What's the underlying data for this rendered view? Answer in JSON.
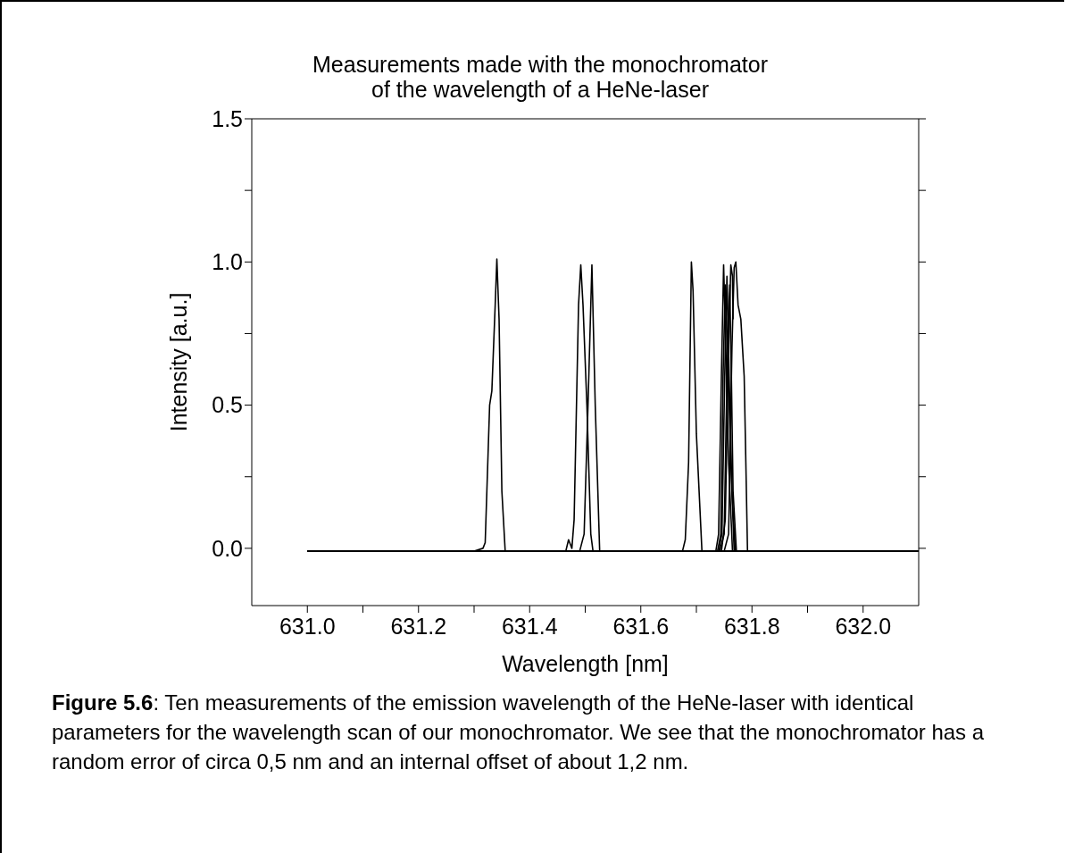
{
  "chart_data": {
    "type": "line",
    "title": "Measurements made with the monochromator\nof the wavelength of a HeNe-laser",
    "xlabel": "Wavelength [nm]",
    "ylabel": "Intensity [a.u.]",
    "xlim": [
      630.9,
      632.1
    ],
    "xticks": [
      {
        "value": 631.0,
        "label": "631.0"
      },
      {
        "value": 631.1,
        "label": null
      },
      {
        "value": 631.2,
        "label": "631.2"
      },
      {
        "value": 631.3,
        "label": null
      },
      {
        "value": 631.4,
        "label": "631.4"
      },
      {
        "value": 631.5,
        "label": null
      },
      {
        "value": 631.6,
        "label": "631.6"
      },
      {
        "value": 631.7,
        "label": null
      },
      {
        "value": 631.8,
        "label": "631.8"
      },
      {
        "value": 631.9,
        "label": null
      },
      {
        "value": 632.0,
        "label": "632.0"
      }
    ],
    "ylim": [
      -0.2,
      1.5
    ],
    "yticks": [
      {
        "value": 0,
        "label": "0.0"
      },
      {
        "value": 0.25,
        "label": null
      },
      {
        "value": 0.5,
        "label": "0.5"
      },
      {
        "value": 0.75,
        "label": null
      },
      {
        "value": 1,
        "label": "1.0"
      },
      {
        "value": 1.25,
        "label": null
      },
      {
        "value": 1.5,
        "label": "1.5"
      }
    ],
    "grid": false,
    "legend": false,
    "marker": "none",
    "line_style": "solid",
    "series": [
      {
        "color": "#000000",
        "x": [
          631.0,
          631.3,
          631.316,
          631.32,
          631.328,
          631.332,
          631.338,
          631.341,
          631.345,
          631.35,
          631.356,
          632.1
        ],
        "values": [
          -0.01,
          -0.01,
          0.0,
          0.02,
          0.5,
          0.55,
          0.85,
          1.01,
          0.8,
          0.2,
          -0.01,
          -0.01
        ]
      },
      {
        "color": "#000000",
        "x": [
          631.0,
          631.465,
          631.47,
          631.476,
          631.48,
          631.488,
          631.492,
          631.496,
          631.503,
          631.51,
          631.514,
          632.1
        ],
        "values": [
          -0.01,
          -0.01,
          0.03,
          0.0,
          0.1,
          0.85,
          0.99,
          0.85,
          0.5,
          0.05,
          -0.01,
          -0.01
        ]
      },
      {
        "color": "#000000",
        "x": [
          631.0,
          631.49,
          631.498,
          631.505,
          631.512,
          631.518,
          631.526,
          632.1
        ],
        "values": [
          -0.01,
          -0.01,
          0.05,
          0.5,
          0.99,
          0.5,
          -0.01,
          -0.01
        ]
      },
      {
        "color": "#000000",
        "x": [
          631.0,
          631.675,
          631.68,
          631.686,
          631.691,
          631.694,
          631.7,
          631.71,
          632.1
        ],
        "values": [
          -0.01,
          -0.01,
          0.03,
          0.3,
          1.0,
          0.9,
          0.4,
          -0.01,
          -0.01
        ]
      },
      {
        "color": "#000000",
        "x": [
          631.0,
          631.735,
          631.74,
          631.745,
          631.749,
          631.753,
          631.758,
          631.765,
          632.1
        ],
        "values": [
          -0.01,
          -0.01,
          0.05,
          0.6,
          0.99,
          0.7,
          0.3,
          -0.01,
          -0.01
        ]
      },
      {
        "color": "#000000",
        "x": [
          631.0,
          631.738,
          631.744,
          631.748,
          631.752,
          631.756,
          631.762,
          631.768,
          632.1
        ],
        "values": [
          -0.01,
          -0.01,
          0.05,
          0.6,
          0.92,
          0.7,
          0.3,
          -0.01,
          -0.01
        ]
      },
      {
        "color": "#000000",
        "x": [
          631.0,
          631.74,
          631.746,
          631.751,
          631.755,
          631.759,
          631.764,
          631.77,
          632.1
        ],
        "values": [
          -0.01,
          -0.01,
          0.05,
          0.6,
          0.95,
          0.6,
          0.2,
          -0.01,
          -0.01
        ]
      },
      {
        "color": "#000000",
        "x": [
          631.0,
          631.742,
          631.75,
          631.755,
          631.76,
          631.763,
          631.766,
          631.772,
          632.1
        ],
        "values": [
          -0.01,
          -0.01,
          0.05,
          0.6,
          0.92,
          0.6,
          0.2,
          -0.01,
          -0.01
        ]
      },
      {
        "color": "#000000",
        "x": [
          631.0,
          631.745,
          631.752,
          631.758,
          631.762,
          631.765,
          631.766
        ],
        "values": [
          -0.01,
          -0.01,
          0.1,
          0.7,
          0.99,
          0.95,
          0.8
        ]
      },
      {
        "color": "#000000",
        "x": [
          631.0,
          631.75,
          631.758,
          631.764,
          631.768,
          631.771,
          631.775,
          631.78,
          631.786,
          631.789,
          631.792,
          632.1
        ],
        "values": [
          -0.01,
          -0.01,
          0.05,
          0.7,
          0.98,
          1.0,
          0.85,
          0.8,
          0.6,
          0.3,
          -0.01,
          -0.01
        ]
      }
    ],
    "annotations": [
      "Figure 5.6: Ten measurements of the emission wavelength of the HeNe-laser with identical parameters for the wavelength scan of our monochromator. We see that the monochromator has a random error of circa 0,5 nm and an internal offset of about 1,2 nm."
    ]
  }
}
